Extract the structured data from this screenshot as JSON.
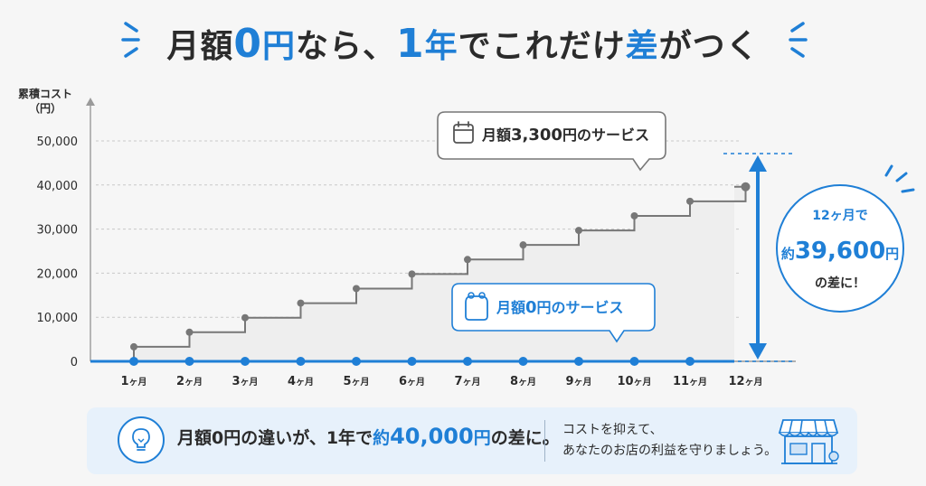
{
  "headline": {
    "parts": [
      {
        "text": "月額",
        "style": "dark"
      },
      {
        "text": "0",
        "style": "blue-big"
      },
      {
        "text": "円",
        "style": "blue"
      },
      {
        "text": "なら、",
        "style": "dark"
      },
      {
        "text": "1",
        "style": "blue-big"
      },
      {
        "text": "年",
        "style": "blue"
      },
      {
        "text": "でこれだけ",
        "style": "dark"
      },
      {
        "text": "差",
        "style": "blue"
      },
      {
        "text": "がつく",
        "style": "dark"
      }
    ]
  },
  "colors": {
    "accent": "#1f7fd6",
    "paid_line": "#777777",
    "paid_fill": "#eeeeee",
    "text": "#2b2b2b",
    "banner_bg": "#e7f1fb",
    "page_bg": "#f6f6f6"
  },
  "chart_data": {
    "type": "line",
    "step": true,
    "ylabel": "累積コスト\n（円）",
    "y_ticks": [
      "50,000",
      "40,000",
      "30,000",
      "20,000",
      "10,000",
      "0"
    ],
    "y_tick_values": [
      50000,
      40000,
      30000,
      20000,
      10000,
      0
    ],
    "ylim": [
      0,
      50000
    ],
    "categories": [
      "1ヶ月",
      "2ヶ月",
      "3ヶ月",
      "4ヶ月",
      "5ヶ月",
      "6ヶ月",
      "7ヶ月",
      "8ヶ月",
      "9ヶ月",
      "10ヶ月",
      "11ヶ月",
      "12ヶ月"
    ],
    "category_labels": [
      {
        "num": "1",
        "unit": "ヶ月"
      },
      {
        "num": "2",
        "unit": "ヶ月"
      },
      {
        "num": "3",
        "unit": "ヶ月"
      },
      {
        "num": "4",
        "unit": "ヶ月"
      },
      {
        "num": "5",
        "unit": "ヶ月"
      },
      {
        "num": "6",
        "unit": "ヶ月"
      },
      {
        "num": "7",
        "unit": "ヶ月"
      },
      {
        "num": "8",
        "unit": "ヶ月"
      },
      {
        "num": "9",
        "unit": "ヶ月"
      },
      {
        "num": "10",
        "unit": "ヶ月"
      },
      {
        "num": "11",
        "unit": "ヶ月"
      },
      {
        "num": "12",
        "unit": "ヶ月"
      }
    ],
    "series": [
      {
        "name": "月額3,300円のサービス",
        "values": [
          3300,
          6600,
          9900,
          13200,
          16500,
          19800,
          23100,
          26400,
          29700,
          33000,
          36300,
          39600
        ]
      },
      {
        "name": "月額0円のサービス",
        "values": [
          0,
          0,
          0,
          0,
          0,
          0,
          0,
          0,
          0,
          0,
          0,
          0
        ]
      }
    ],
    "grid": true,
    "legend": "callouts"
  },
  "callout_paid": {
    "prefix": "月額",
    "num": "3,300",
    "suffix": "円のサービス",
    "icon": "calendar-icon"
  },
  "callout_free": {
    "prefix": "月額",
    "num": "0",
    "suffix": "円のサービス",
    "icon": "wallet-icon"
  },
  "diff_badge": {
    "line1": "12ヶ月で",
    "prefix": "約",
    "num": "39,600",
    "unit": "円",
    "line3": "の差に！"
  },
  "banner": {
    "main_parts": [
      {
        "text": "月額0円の違いが、1年で",
        "style": "dark"
      },
      {
        "text": "約",
        "style": "blue"
      },
      {
        "text": "40,000",
        "style": "bignum"
      },
      {
        "text": "円",
        "style": "blue"
      },
      {
        "text": "の差に。",
        "style": "dark"
      }
    ],
    "sub_line1": "コストを抑えて、",
    "sub_line2": "あなたのお店の利益を守りましょう。",
    "bulb_icon": "lightbulb-icon",
    "shop_icon": "storefront-icon"
  }
}
